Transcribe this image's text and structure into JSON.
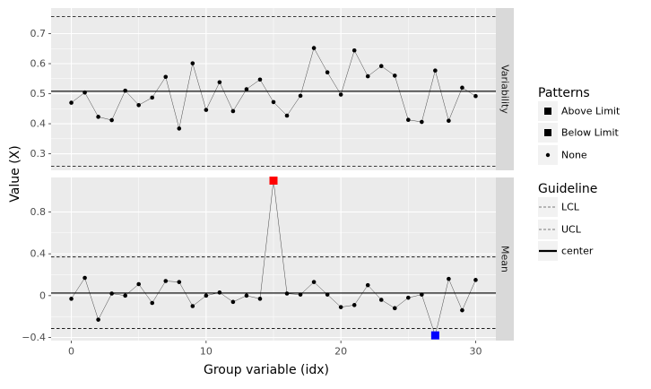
{
  "chart_data": {
    "type": "line",
    "ylabel": "Value (X)",
    "xlabel": "Group variable (idx)",
    "x_ticks": [
      0,
      10,
      20,
      30
    ],
    "xlim": [
      -1.5,
      31.5
    ],
    "panels": [
      {
        "strip_label": "Variability",
        "ylim": [
          0.245,
          0.785
        ],
        "y_ticks": [
          0.3,
          0.4,
          0.5,
          0.6,
          0.7
        ],
        "y_tick_labels": [
          "0.3",
          "0.4",
          "0.5",
          "0.6",
          "0.7"
        ],
        "center": 0.508,
        "ucl": 0.757,
        "lcl": 0.258,
        "x": [
          0,
          1,
          2,
          3,
          4,
          5,
          6,
          7,
          8,
          9,
          10,
          11,
          12,
          13,
          14,
          15,
          16,
          17,
          18,
          19,
          20,
          21,
          22,
          23,
          24,
          25,
          26,
          27,
          28,
          29,
          30
        ],
        "values": [
          0.47,
          0.504,
          0.423,
          0.412,
          0.51,
          0.462,
          0.487,
          0.556,
          0.384,
          0.601,
          0.446,
          0.538,
          0.442,
          0.515,
          0.547,
          0.472,
          0.427,
          0.493,
          0.652,
          0.571,
          0.497,
          0.644,
          0.558,
          0.592,
          0.56,
          0.413,
          0.406,
          0.577,
          0.41,
          0.52,
          0.492
        ],
        "patterns": [
          "None",
          "None",
          "None",
          "None",
          "None",
          "None",
          "None",
          "None",
          "None",
          "None",
          "None",
          "None",
          "None",
          "None",
          "None",
          "None",
          "None",
          "None",
          "None",
          "None",
          "None",
          "None",
          "None",
          "None",
          "None",
          "None",
          "None",
          "None",
          "None",
          "None",
          "None"
        ]
      },
      {
        "strip_label": "Mean",
        "ylim": [
          -0.43,
          1.13
        ],
        "y_ticks": [
          -0.4,
          0.0,
          0.4,
          0.8
        ],
        "y_tick_labels": [
          "−0.4",
          "0",
          "0.4",
          "0.8"
        ],
        "center": 0.025,
        "ucl": 0.37,
        "lcl": -0.315,
        "x": [
          0,
          1,
          2,
          3,
          4,
          5,
          6,
          7,
          8,
          9,
          10,
          11,
          12,
          13,
          14,
          15,
          16,
          17,
          18,
          19,
          20,
          21,
          22,
          23,
          24,
          25,
          26,
          27,
          28,
          29,
          30
        ],
        "values": [
          -0.03,
          0.17,
          -0.23,
          0.02,
          0.0,
          0.11,
          -0.07,
          0.14,
          0.13,
          -0.1,
          0.0,
          0.03,
          -0.06,
          0.0,
          -0.03,
          1.1,
          0.02,
          0.01,
          0.13,
          0.01,
          -0.11,
          -0.09,
          0.1,
          -0.04,
          -0.12,
          -0.02,
          0.01,
          -0.38,
          0.16,
          -0.14,
          0.15
        ],
        "patterns": [
          "None",
          "None",
          "None",
          "None",
          "None",
          "None",
          "None",
          "None",
          "None",
          "None",
          "None",
          "None",
          "None",
          "None",
          "None",
          "Above Limit",
          "None",
          "None",
          "None",
          "None",
          "None",
          "None",
          "None",
          "None",
          "None",
          "None",
          "None",
          "Below Limit",
          "None",
          "None",
          "None"
        ]
      }
    ],
    "legend_patterns": {
      "title": "Patterns",
      "entries": [
        {
          "label": "Above Limit",
          "color": "#ff0000"
        },
        {
          "label": "Below Limit",
          "color": "#0000ff"
        },
        {
          "label": "None",
          "color": "#000000"
        }
      ]
    },
    "legend_guideline": {
      "title": "Guideline",
      "entries": [
        {
          "label": "LCL",
          "style": "dashed"
        },
        {
          "label": "UCL",
          "style": "dashed"
        },
        {
          "label": "center",
          "style": "solid"
        }
      ]
    }
  }
}
